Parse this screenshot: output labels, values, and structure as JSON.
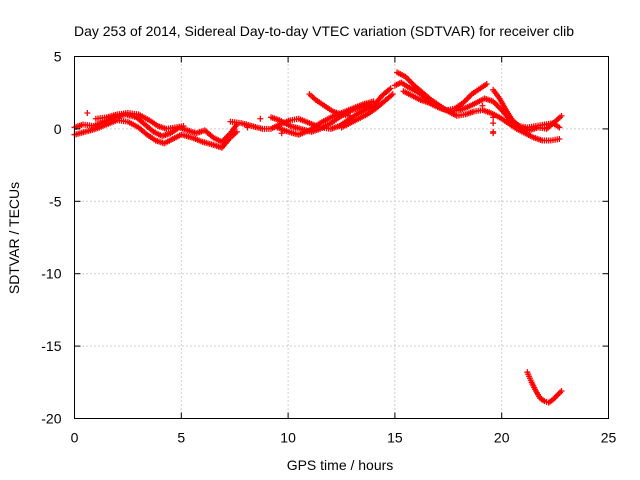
{
  "chart_data": {
    "type": "scatter",
    "title": "Day 253 of 2014, Sidereal Day-to-day VTEC variation (SDTVAR) for receiver clib",
    "xlabel": "GPS time / hours",
    "ylabel": "SDTVAR / TECUs",
    "xlim": [
      0,
      25
    ],
    "ylim": [
      -20,
      5
    ],
    "xticks": [
      0,
      5,
      10,
      15,
      20,
      25
    ],
    "yticks": [
      5,
      0,
      -5,
      -10,
      -15,
      -20
    ],
    "grid": true,
    "marker": "plus",
    "series": [
      {
        "name": "SDTVAR",
        "color": "#ff0000",
        "tracks": [
          [
            [
              0.0,
              0.1
            ],
            [
              0.4,
              0.3
            ],
            [
              0.9,
              0.2
            ],
            [
              1.4,
              0.5
            ],
            [
              1.9,
              0.8
            ],
            [
              2.4,
              1.0
            ],
            [
              2.9,
              0.8
            ],
            [
              3.3,
              0.3
            ],
            [
              3.7,
              -0.2
            ],
            [
              4.1,
              -0.5
            ],
            [
              4.5,
              -0.3
            ],
            [
              4.9,
              0.1
            ],
            [
              5.3,
              -0.1
            ],
            [
              5.7,
              -0.3
            ],
            [
              6.1,
              -0.1
            ],
            [
              6.5,
              -0.6
            ],
            [
              6.9,
              -0.9
            ],
            [
              7.3,
              -0.3
            ],
            [
              7.6,
              0.3
            ]
          ],
          [
            [
              0.0,
              -0.4
            ],
            [
              0.5,
              -0.2
            ],
            [
              1.0,
              0.0
            ],
            [
              1.5,
              0.3
            ],
            [
              2.0,
              0.6
            ],
            [
              2.5,
              0.5
            ],
            [
              3.0,
              0.1
            ],
            [
              3.4,
              -0.4
            ],
            [
              3.8,
              -0.8
            ],
            [
              4.2,
              -1.0
            ],
            [
              4.6,
              -0.7
            ],
            [
              5.0,
              -0.4
            ],
            [
              5.5,
              -0.6
            ],
            [
              6.0,
              -0.9
            ],
            [
              6.5,
              -1.1
            ],
            [
              6.9,
              -1.3
            ],
            [
              7.3,
              -0.6
            ],
            [
              7.6,
              -0.2
            ]
          ],
          [
            [
              1.0,
              0.7
            ],
            [
              1.5,
              0.8
            ],
            [
              2.0,
              1.0
            ],
            [
              2.5,
              1.1
            ],
            [
              3.0,
              1.0
            ],
            [
              3.5,
              0.6
            ],
            [
              3.9,
              0.2
            ],
            [
              4.3,
              0.0
            ],
            [
              4.7,
              0.1
            ],
            [
              5.1,
              0.2
            ]
          ],
          [
            [
              7.3,
              0.5
            ],
            [
              7.8,
              0.4
            ],
            [
              8.3,
              0.2
            ],
            [
              8.8,
              0.0
            ],
            [
              9.2,
              0.0
            ],
            [
              9.6,
              0.3
            ],
            [
              10.1,
              0.6
            ],
            [
              10.5,
              0.7
            ],
            [
              11.0,
              0.4
            ],
            [
              11.5,
              0.1
            ],
            [
              12.0,
              0.0
            ],
            [
              12.4,
              0.2
            ],
            [
              12.8,
              0.6
            ],
            [
              13.2,
              1.0
            ],
            [
              13.6,
              1.3
            ],
            [
              14.0,
              1.6
            ],
            [
              14.4,
              2.3
            ],
            [
              14.8,
              2.8
            ]
          ],
          [
            [
              9.2,
              0.8
            ],
            [
              9.6,
              0.6
            ],
            [
              10.1,
              0.2
            ],
            [
              10.6,
              0.0
            ],
            [
              11.1,
              -0.2
            ],
            [
              11.5,
              0.0
            ],
            [
              12.0,
              0.4
            ],
            [
              12.5,
              0.9
            ],
            [
              13.0,
              1.3
            ],
            [
              13.5,
              1.5
            ],
            [
              13.9,
              1.7
            ]
          ],
          [
            [
              9.5,
              0.1
            ],
            [
              10.0,
              -0.2
            ],
            [
              10.5,
              -0.4
            ],
            [
              11.0,
              -0.1
            ],
            [
              11.5,
              0.4
            ],
            [
              12.0,
              0.8
            ],
            [
              12.5,
              1.1
            ],
            [
              13.0,
              1.4
            ],
            [
              13.5,
              1.7
            ],
            [
              14.0,
              1.9
            ]
          ],
          [
            [
              11.0,
              2.4
            ],
            [
              11.3,
              2.0
            ],
            [
              11.7,
              1.6
            ],
            [
              12.1,
              1.2
            ],
            [
              12.5,
              1.0
            ],
            [
              12.9,
              0.9
            ]
          ],
          [
            [
              12.5,
              0.1
            ],
            [
              12.9,
              0.4
            ],
            [
              13.3,
              0.7
            ],
            [
              13.7,
              1.0
            ],
            [
              14.1,
              1.4
            ],
            [
              14.5,
              1.9
            ],
            [
              14.9,
              2.4
            ]
          ],
          [
            [
              15.0,
              3.0
            ],
            [
              15.3,
              3.2
            ],
            [
              15.6,
              2.9
            ],
            [
              16.0,
              2.6
            ],
            [
              16.4,
              2.2
            ],
            [
              16.8,
              1.8
            ],
            [
              17.2,
              1.4
            ],
            [
              17.6,
              1.2
            ],
            [
              18.0,
              1.3
            ],
            [
              18.4,
              1.5
            ],
            [
              18.8,
              1.8
            ],
            [
              19.2,
              2.1
            ],
            [
              19.6,
              1.9
            ],
            [
              20.0,
              1.3
            ],
            [
              20.4,
              0.6
            ],
            [
              20.8,
              0.2
            ],
            [
              21.2,
              0.1
            ],
            [
              21.6,
              0.2
            ],
            [
              22.0,
              0.3
            ],
            [
              22.4,
              0.4
            ],
            [
              22.7,
              0.1
            ]
          ],
          [
            [
              15.1,
              3.9
            ],
            [
              15.5,
              3.6
            ],
            [
              15.9,
              3.0
            ],
            [
              16.3,
              2.5
            ],
            [
              16.7,
              2.0
            ],
            [
              17.1,
              1.6
            ],
            [
              17.5,
              1.2
            ],
            [
              17.9,
              0.9
            ],
            [
              18.3,
              1.0
            ],
            [
              18.7,
              1.2
            ],
            [
              19.1,
              1.3
            ],
            [
              19.5,
              1.1
            ],
            [
              19.9,
              0.8
            ],
            [
              20.3,
              0.4
            ],
            [
              20.7,
              0.0
            ],
            [
              21.1,
              -0.3
            ],
            [
              21.5,
              -0.6
            ],
            [
              21.9,
              -0.8
            ],
            [
              22.3,
              -0.8
            ],
            [
              22.7,
              -0.7
            ]
          ],
          [
            [
              15.4,
              2.6
            ],
            [
              15.8,
              2.3
            ],
            [
              16.2,
              2.0
            ],
            [
              16.6,
              1.8
            ],
            [
              17.0,
              1.5
            ],
            [
              17.4,
              1.3
            ],
            [
              17.8,
              1.4
            ],
            [
              18.2,
              1.8
            ],
            [
              18.6,
              2.4
            ],
            [
              19.0,
              2.8
            ],
            [
              19.3,
              3.1
            ]
          ],
          [
            [
              19.6,
              2.7
            ],
            [
              19.9,
              2.1
            ],
            [
              20.2,
              1.3
            ],
            [
              20.5,
              0.6
            ],
            [
              20.9,
              0.1
            ],
            [
              21.3,
              -0.1
            ],
            [
              21.7,
              0.1
            ],
            [
              22.1,
              0.0
            ],
            [
              22.5,
              0.5
            ],
            [
              22.8,
              0.9
            ]
          ],
          [
            [
              21.2,
              -16.8
            ],
            [
              21.4,
              -17.5
            ],
            [
              21.6,
              -18.1
            ],
            [
              21.8,
              -18.6
            ],
            [
              22.0,
              -18.8
            ],
            [
              22.2,
              -18.9
            ],
            [
              22.4,
              -18.7
            ],
            [
              22.6,
              -18.4
            ],
            [
              22.8,
              -18.1
            ]
          ]
        ],
        "isolated_points": [
          [
            0.6,
            1.1
          ],
          [
            8.1,
            0.1
          ],
          [
            8.7,
            0.7
          ],
          [
            9.7,
            -0.3
          ],
          [
            19.1,
            1.6
          ],
          [
            19.6,
            0.8
          ],
          [
            19.6,
            0.4
          ],
          [
            19.6,
            -0.2
          ],
          [
            19.6,
            -0.3
          ]
        ]
      }
    ]
  }
}
